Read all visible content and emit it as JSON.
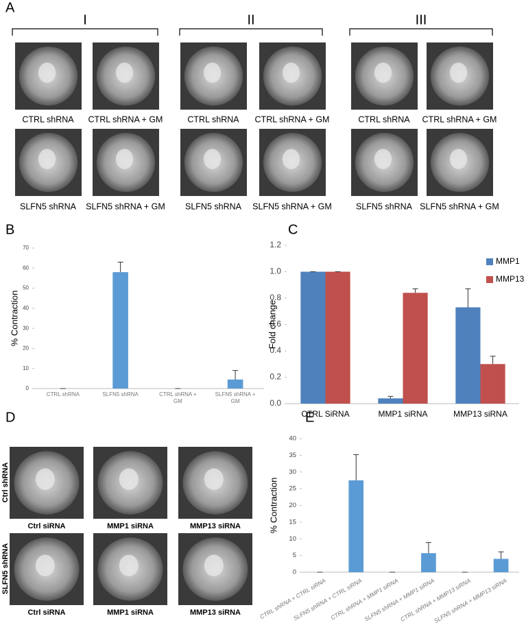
{
  "panel_labels": [
    "A",
    "B",
    "C",
    "D",
    "E"
  ],
  "panel_a": {
    "groups": [
      {
        "label": "I",
        "captions": [
          "CTRL shRNA",
          "CTRL shRNA + GM",
          "SLFN5 shRNA",
          "SLFN5 shRNA + GM"
        ]
      },
      {
        "label": "II",
        "captions": [
          "CTRL shRNA",
          "CTRL shRNA + GM",
          "SLFN5 shRNA",
          "SLFN5 shRNA + GM"
        ]
      },
      {
        "label": "III",
        "captions": [
          "CTRL shRNA",
          "CTRL shRNA + GM",
          "SLFN5 shRNA",
          "SLFN5 shRNA + GM"
        ]
      }
    ]
  },
  "panel_d": {
    "row_labels": [
      "Ctrl shRNA",
      "SLFN5 shRNA"
    ],
    "captions": [
      [
        "Ctrl siRNA",
        "MMP1 siRNA",
        "MMP13 siRNA"
      ],
      [
        "Ctrl siRNA",
        "MMP1 siRNA",
        "MMP13 siRNA"
      ]
    ]
  },
  "chart_data": [
    {
      "type": "bar",
      "ylabel": "% Contraction",
      "categories": [
        "CTRL shRNA",
        "SLFN5 shRNA",
        "CTRL shRNA + GM",
        "SLFN5 shRNA + GM"
      ],
      "values": [
        0,
        58,
        0,
        4.5
      ],
      "errors": [
        0,
        5,
        0,
        4.5
      ],
      "color": "#5b9bd5",
      "ylim": [
        0,
        70
      ],
      "yticks": [
        0,
        10,
        20,
        30,
        40,
        50,
        60,
        70
      ]
    },
    {
      "type": "bar",
      "ylabel": "Fold change",
      "categories": [
        "CTRL SiRNA",
        "MMP1 siRNA",
        "MMP13 siRNA"
      ],
      "series": [
        {
          "name": "MMP1",
          "color": "#4f81bd",
          "values": [
            1.0,
            0.04,
            0.73
          ],
          "errors": [
            0,
            0.015,
            0.14
          ]
        },
        {
          "name": "MMP13",
          "color": "#c0504d",
          "values": [
            1.0,
            0.84,
            0.3
          ],
          "errors": [
            0,
            0.03,
            0.06
          ]
        }
      ],
      "ylim": [
        0,
        1.2
      ],
      "yticks": [
        {
          "value": 0,
          "label": "0.0"
        },
        0.2,
        0.4,
        0.6,
        0.8,
        {
          "value": 1,
          "label": "1.0"
        },
        1.2
      ],
      "legend": "top-right"
    },
    {
      "type": "bar",
      "ylabel": "% Contraction",
      "categories": [
        "CTRL shRNA + CTRL siRNA",
        "SLFN5 shRNA + CTRL siRNA",
        "CTRL shRNA + MMP1 siRNA",
        "SLFN5 shRNA + MMP1 siRNA",
        "CTRL shRNA + MMP13 siRNA",
        "SLFN5 shRNA + MMP13 siRNA"
      ],
      "values": [
        0,
        27.5,
        0,
        5.7,
        0,
        4
      ],
      "errors": [
        0,
        7.7,
        0,
        3.2,
        0,
        2.1
      ],
      "color": "#5b9bd5",
      "ylim": [
        0,
        40
      ],
      "yticks": [
        0,
        5,
        10,
        15,
        20,
        25,
        30,
        35,
        40
      ]
    }
  ]
}
